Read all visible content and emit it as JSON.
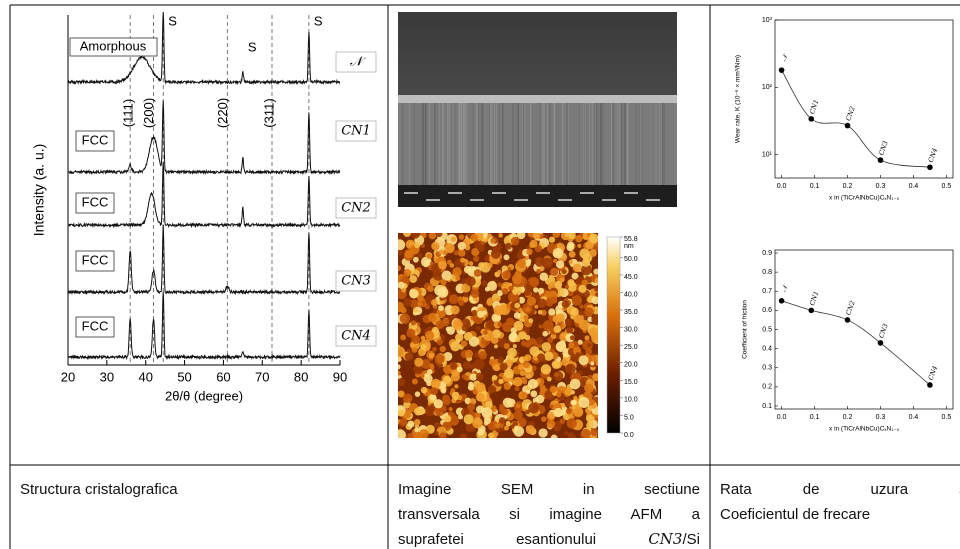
{
  "samples": [
    "𝒩",
    "CN1",
    "CN2",
    "CN3",
    "CN4"
  ],
  "xrd": {
    "type": "line",
    "xlabel": "2θ/θ (degree)",
    "ylabel": "Intensity (a. u.)",
    "xlim": [
      20,
      90
    ],
    "xticks": [
      20,
      30,
      40,
      50,
      60,
      70,
      80,
      90
    ],
    "ref_lines": [
      36,
      42,
      44.5,
      61,
      72.5,
      82
    ],
    "annotations": {
      "amorphous": "Amorphous",
      "fcc": "FCC",
      "s": "S",
      "planes": [
        "(111)",
        "(200)",
        "(220)",
        "(311)"
      ]
    },
    "series": [
      {
        "peaks": [
          39,
          44.5,
          65,
          82
        ],
        "heights": [
          0.35,
          1.0,
          0.15,
          0.7
        ],
        "widths": [
          3,
          0.25,
          0.25,
          0.25
        ]
      },
      {
        "peaks": [
          36,
          42,
          44.5,
          65,
          82
        ],
        "heights": [
          0.1,
          0.5,
          1.0,
          0.2,
          0.85
        ],
        "widths": [
          0.5,
          1.5,
          0.25,
          0.25,
          0.25
        ]
      },
      {
        "peaks": [
          41.5,
          44.5,
          65,
          82
        ],
        "heights": [
          0.45,
          0.9,
          0.25,
          0.7
        ],
        "widths": [
          1.2,
          0.25,
          0.25,
          0.25
        ]
      },
      {
        "peaks": [
          36,
          42,
          44.5,
          61,
          82
        ],
        "heights": [
          0.6,
          0.3,
          0.95,
          0.08,
          0.85
        ],
        "widths": [
          0.4,
          0.6,
          0.25,
          0.5,
          0.25
        ]
      },
      {
        "peaks": [
          36,
          42,
          44.5,
          65,
          82
        ],
        "heights": [
          0.55,
          0.55,
          0.95,
          0.08,
          0.65
        ],
        "widths": [
          0.35,
          0.4,
          0.25,
          0.25,
          0.25
        ]
      }
    ]
  },
  "afm": {
    "unit": "nm",
    "clim": [
      0,
      55.8
    ],
    "ticks": [
      55.8,
      {
        "value": 50,
        "label": "50.0"
      },
      {
        "value": 45,
        "label": "45.0"
      },
      {
        "value": 40,
        "label": "40.0"
      },
      {
        "value": 35,
        "label": "35.0"
      },
      {
        "value": 30,
        "label": "30.0"
      },
      {
        "value": 25,
        "label": "25.0"
      },
      {
        "value": 20,
        "label": "20.0"
      },
      {
        "value": 15,
        "label": "15.0"
      },
      {
        "value": 10,
        "label": "10.0"
      },
      {
        "value": 5,
        "label": "5.0"
      },
      {
        "value": 0,
        "label": "0.0"
      }
    ]
  },
  "wear": {
    "type": "scatter",
    "log_y": true,
    "ylabel": "Wear rate, K (10⁻⁶ × mm³/Nm)",
    "xlabel": "x in (TiCrAlNbCu)CₓN₁₋ₓ",
    "x": [
      0,
      0.09,
      0.2,
      0.3,
      0.45
    ],
    "values": [
      180,
      34,
      27,
      8.3,
      6.5
    ],
    "xlim": [
      -0.02,
      0.52
    ],
    "xticks": [
      {
        "value": 0,
        "label": "0.0"
      },
      0.1,
      0.2,
      0.3,
      0.4,
      0.5
    ],
    "ylim": [
      4.5,
      1000
    ],
    "yticks": [
      {
        "value": 10,
        "label": "10¹"
      },
      {
        "value": 100,
        "label": "10²"
      },
      {
        "value": 1000,
        "label": "10³"
      }
    ]
  },
  "friction": {
    "type": "scatter",
    "ylabel": "Coefficient of friction",
    "xlabel": "x in (TiCrAlNbCu)CₓN₁₋ₓ",
    "x": [
      0,
      0.09,
      0.2,
      0.3,
      0.45
    ],
    "values": [
      0.65,
      0.6,
      0.55,
      0.43,
      0.21
    ],
    "xlim": [
      -0.02,
      0.52
    ],
    "xticks": [
      {
        "value": 0,
        "label": "0.0"
      },
      0.1,
      0.2,
      0.3,
      0.4,
      0.5
    ],
    "ylim": [
      0.1,
      0.9
    ],
    "yticks": [
      0.1,
      0.2,
      0.3,
      0.4,
      0.5,
      0.6,
      0.7,
      0.8,
      0.9
    ]
  },
  "captions": {
    "structure": "Structura cristalografica",
    "images": [
      "Imagine SEM in sectiune",
      "transversala si imagine AFM a",
      [
        "suprafetei esantionului ",
        "CN3",
        "/Si"
      ]
    ],
    "wear": [
      "Rata de uzura si",
      "Coeficientul de frecare"
    ]
  }
}
